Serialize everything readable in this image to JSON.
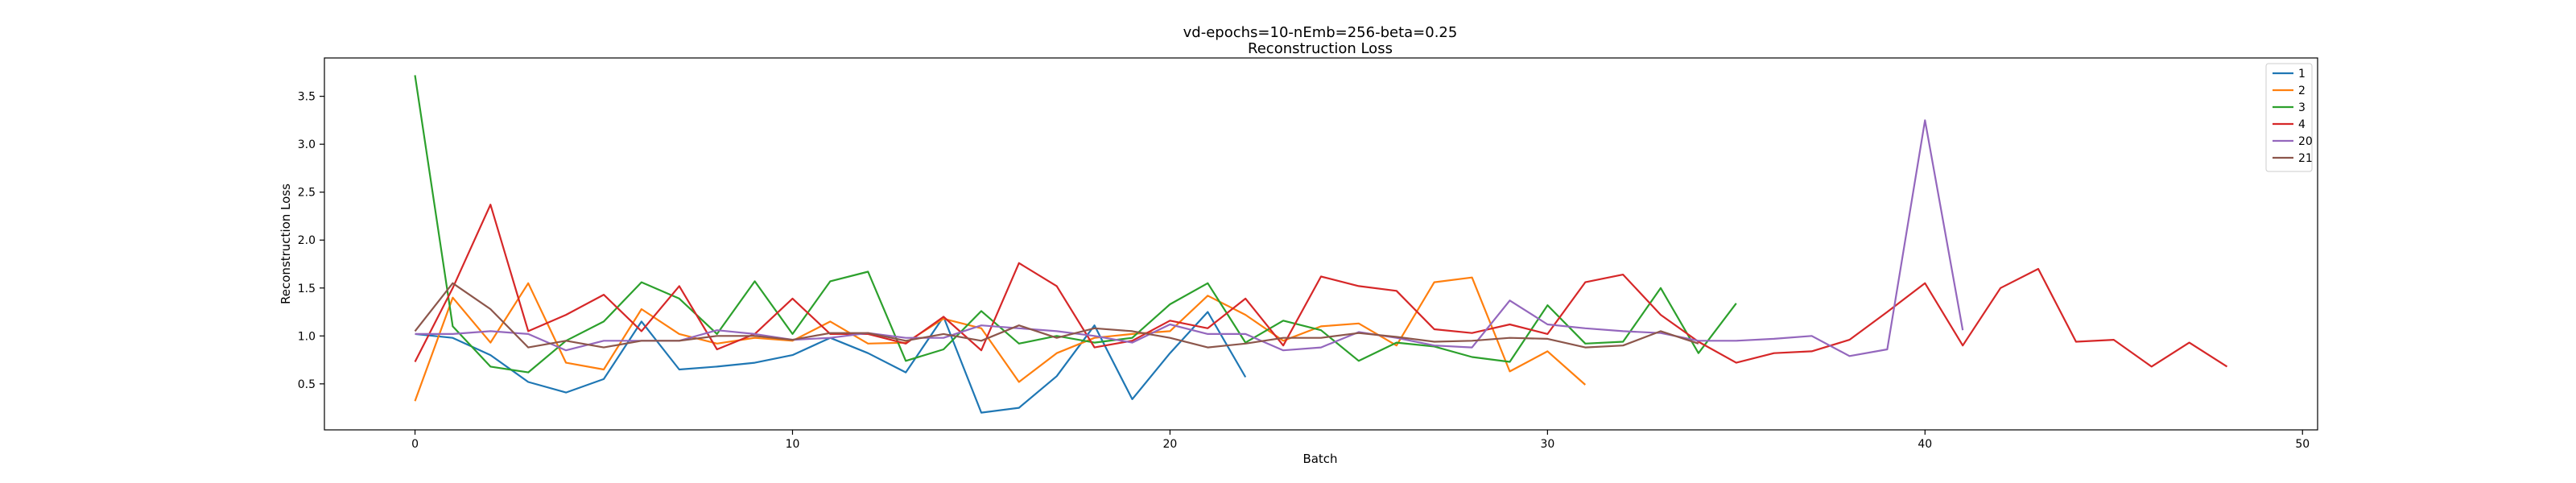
{
  "chart_data": {
    "type": "line",
    "title": "vd-epochs=10-nEmb=256-beta=0.25",
    "subtitle": "Reconstruction Loss",
    "xlabel": "Batch",
    "ylabel": "Reconstruction Loss",
    "xlim": [
      -2.4,
      50.4
    ],
    "ylim": [
      0.02,
      3.9
    ],
    "xticks": [
      0,
      10,
      20,
      30,
      40,
      50
    ],
    "yticks": [
      0.5,
      1.0,
      1.5,
      2.0,
      2.5,
      3.0,
      3.5
    ],
    "grid": false,
    "legend_position": "top-right",
    "series": [
      {
        "name": "1",
        "color": "#1f77b4",
        "values": [
          1.02,
          0.98,
          0.8,
          0.52,
          0.41,
          0.55,
          1.15,
          0.65,
          0.68,
          0.72,
          0.8,
          0.98,
          0.82,
          0.62,
          1.2,
          0.2,
          0.25,
          0.58,
          1.11,
          0.34,
          0.82,
          1.25,
          0.57
        ]
      },
      {
        "name": "2",
        "color": "#ff7f0e",
        "values": [
          0.32,
          1.4,
          0.93,
          1.55,
          0.72,
          0.65,
          1.28,
          1.02,
          0.92,
          0.98,
          0.95,
          1.15,
          0.92,
          0.93,
          1.18,
          1.08,
          0.52,
          0.82,
          0.98,
          1.02,
          1.05,
          1.42,
          1.22,
          0.95,
          1.1,
          1.13,
          0.9,
          1.56,
          1.61,
          0.63,
          0.84,
          0.49
        ]
      },
      {
        "name": "3",
        "color": "#2ca02c",
        "values": [
          3.72,
          1.1,
          0.68,
          0.62,
          0.95,
          1.15,
          1.56,
          1.39,
          1.02,
          1.57,
          1.02,
          1.57,
          1.67,
          0.74,
          0.86,
          1.26,
          0.92,
          1.0,
          0.93,
          0.98,
          1.33,
          1.55,
          0.93,
          1.16,
          1.06,
          0.74,
          0.93,
          0.89,
          0.78,
          0.73,
          1.32,
          0.92,
          0.94,
          1.5,
          0.82,
          1.34
        ]
      },
      {
        "name": "4",
        "color": "#d62728",
        "values": [
          0.73,
          1.5,
          2.37,
          1.05,
          1.22,
          1.43,
          1.05,
          1.52,
          0.86,
          1.02,
          1.39,
          1.02,
          1.02,
          0.92,
          1.2,
          0.85,
          1.76,
          1.52,
          0.88,
          0.95,
          1.16,
          1.08,
          1.39,
          0.9,
          1.62,
          1.52,
          1.47,
          1.07,
          1.03,
          1.12,
          1.02,
          1.56,
          1.64,
          1.22,
          0.94,
          0.72,
          0.82,
          0.84,
          0.96,
          1.25,
          1.55,
          0.9,
          1.5,
          1.7,
          0.94,
          0.96,
          0.68,
          0.93,
          0.68
        ]
      },
      {
        "name": "20",
        "color": "#9467bd",
        "values": [
          1.02,
          1.02,
          1.05,
          1.02,
          0.85,
          0.95,
          0.95,
          0.95,
          1.06,
          1.02,
          0.96,
          0.98,
          1.03,
          0.98,
          0.98,
          1.11,
          1.08,
          1.05,
          1.0,
          0.93,
          1.12,
          1.02,
          1.02,
          0.85,
          0.88,
          1.04,
          0.98,
          0.9,
          0.88,
          1.37,
          1.12,
          1.08,
          1.05,
          1.03,
          0.95,
          0.95,
          0.97,
          1.0,
          0.79,
          0.86,
          3.25,
          1.06
        ]
      },
      {
        "name": "21",
        "color": "#8c564b",
        "values": [
          1.05,
          1.55,
          1.28,
          0.88,
          0.95,
          0.88,
          0.95,
          0.95,
          1.0,
          1.0,
          0.96,
          1.03,
          1.03,
          0.95,
          1.02,
          0.95,
          1.11,
          0.98,
          1.08,
          1.05,
          0.98,
          0.88,
          0.92,
          0.98,
          0.98,
          1.03,
          0.99,
          0.94,
          0.95,
          0.98,
          0.97,
          0.88,
          0.9,
          1.05,
          0.92
        ]
      }
    ]
  }
}
